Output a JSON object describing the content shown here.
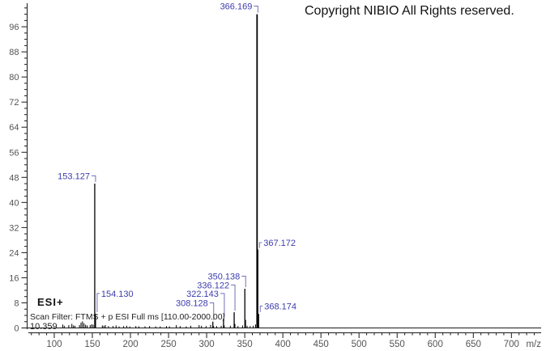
{
  "window": {
    "copyright": "Copyright NIBIO All Rights reserved."
  },
  "annotations": {
    "ionization_mode": "ESI+",
    "scan_filter": "Scan Filter: FTMS + p ESI Full ms [110.00-2000.00]",
    "retention_time": "10.359"
  },
  "chart_data": {
    "type": "bar",
    "subtype": "mass-spectrum-stick-plot",
    "title": "",
    "xlabel": "m/z",
    "ylabel": "",
    "xlim": [
      66,
      739
    ],
    "ylim": [
      0,
      103.5
    ],
    "x_major_tick_start": 100,
    "x_major_tick_end": 700,
    "x_major_tick_step": 50,
    "x_minor_tick_step": 10,
    "y_major_tick_step": 8,
    "y_major_tick_max": 96,
    "y_minor_tick_step": 2,
    "grid": false,
    "legend": false,
    "labeled_peaks": [
      {
        "mz": 153.127,
        "intensity": 46,
        "label": "153.127",
        "label_side": "left",
        "label_level": 48.5
      },
      {
        "mz": 154.13,
        "intensity": 4.5,
        "label": "154.130",
        "label_side": "right",
        "label_level": 11
      },
      {
        "mz": 308.128,
        "intensity": 2,
        "label": "308.128",
        "label_side": "left",
        "label_level": 8
      },
      {
        "mz": 322.143,
        "intensity": 3,
        "label": "322.143",
        "label_side": "left",
        "label_level": 11
      },
      {
        "mz": 336.122,
        "intensity": 5,
        "label": "336.122",
        "label_side": "left",
        "label_level": 13.7
      },
      {
        "mz": 350.138,
        "intensity": 12.5,
        "label": "350.138",
        "label_side": "left",
        "label_level": 16.5
      },
      {
        "mz": 366.169,
        "intensity": 100,
        "label": "366.169",
        "label_side": "left",
        "label_level": 102.6
      },
      {
        "mz": 367.172,
        "intensity": 25,
        "label": "367.172",
        "label_side": "right",
        "label_level": 27.2
      },
      {
        "mz": 368.174,
        "intensity": 4.5,
        "label": "368.174",
        "label_side": "right",
        "label_level": 7
      }
    ],
    "minor_peaks": [
      [
        111.1,
        1.1
      ],
      [
        113.1,
        0.7
      ],
      [
        119.1,
        0.9
      ],
      [
        123.1,
        1.3
      ],
      [
        125.1,
        0.8
      ],
      [
        127.1,
        0.7
      ],
      [
        133.1,
        0.9
      ],
      [
        135.1,
        1.7
      ],
      [
        137.1,
        2.1
      ],
      [
        139.1,
        1.5
      ],
      [
        141.1,
        1.0
      ],
      [
        143.1,
        0.8
      ],
      [
        147.1,
        0.9
      ],
      [
        149.1,
        1.2
      ],
      [
        151.1,
        1.0
      ],
      [
        163.1,
        0.8
      ],
      [
        165.1,
        0.7
      ],
      [
        167.1,
        0.9
      ],
      [
        171.1,
        0.6
      ],
      [
        177.1,
        0.6
      ],
      [
        181.1,
        0.8
      ],
      [
        185.1,
        0.5
      ],
      [
        191.1,
        0.6
      ],
      [
        195.1,
        0.7
      ],
      [
        199.1,
        0.5
      ],
      [
        207.1,
        0.6
      ],
      [
        211.1,
        0.5
      ],
      [
        219.1,
        0.5
      ],
      [
        225.1,
        0.6
      ],
      [
        233.1,
        0.5
      ],
      [
        239.1,
        0.5
      ],
      [
        247.2,
        0.6
      ],
      [
        251.2,
        0.5
      ],
      [
        260.2,
        0.9
      ],
      [
        265.2,
        0.6
      ],
      [
        273.2,
        0.5
      ],
      [
        279.2,
        0.7
      ],
      [
        290.1,
        0.9
      ],
      [
        293.2,
        0.7
      ],
      [
        299.2,
        0.6
      ],
      [
        305.2,
        1.0
      ],
      [
        309.1,
        0.6
      ],
      [
        313.1,
        0.6
      ],
      [
        319.1,
        0.7
      ],
      [
        323.1,
        0.8
      ],
      [
        331.1,
        0.7
      ],
      [
        337.1,
        1.3
      ],
      [
        341.1,
        0.6
      ],
      [
        347.1,
        0.8
      ],
      [
        351.14,
        2.6
      ],
      [
        353.1,
        0.7
      ],
      [
        357.1,
        0.6
      ],
      [
        361.1,
        0.7
      ],
      [
        364.15,
        1.1
      ]
    ],
    "colors": {
      "peak_line": "#000000",
      "peak_label": "#3c3cac",
      "connector": "#7070b8",
      "axis": "#1a1a1a",
      "tick_label": "#555555"
    }
  }
}
